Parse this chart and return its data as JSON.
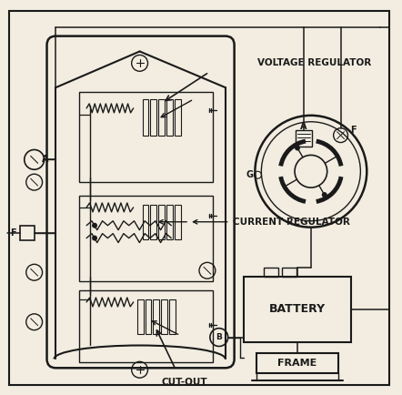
{
  "bg_color": "#f2ede0",
  "line_color": "#1a1a1a",
  "figsize": [
    4.42,
    4.34
  ],
  "dpi": 100,
  "labels": {
    "voltage_regulator": "VOLTAGE REGULATOR",
    "current_regulator": "CURRENT REGULATOR",
    "cut_out": "CUT-OUT",
    "battery": "BATTERY",
    "frame": "FRAME",
    "A": "A",
    "F": "F",
    "G": "G",
    "B": "B"
  }
}
